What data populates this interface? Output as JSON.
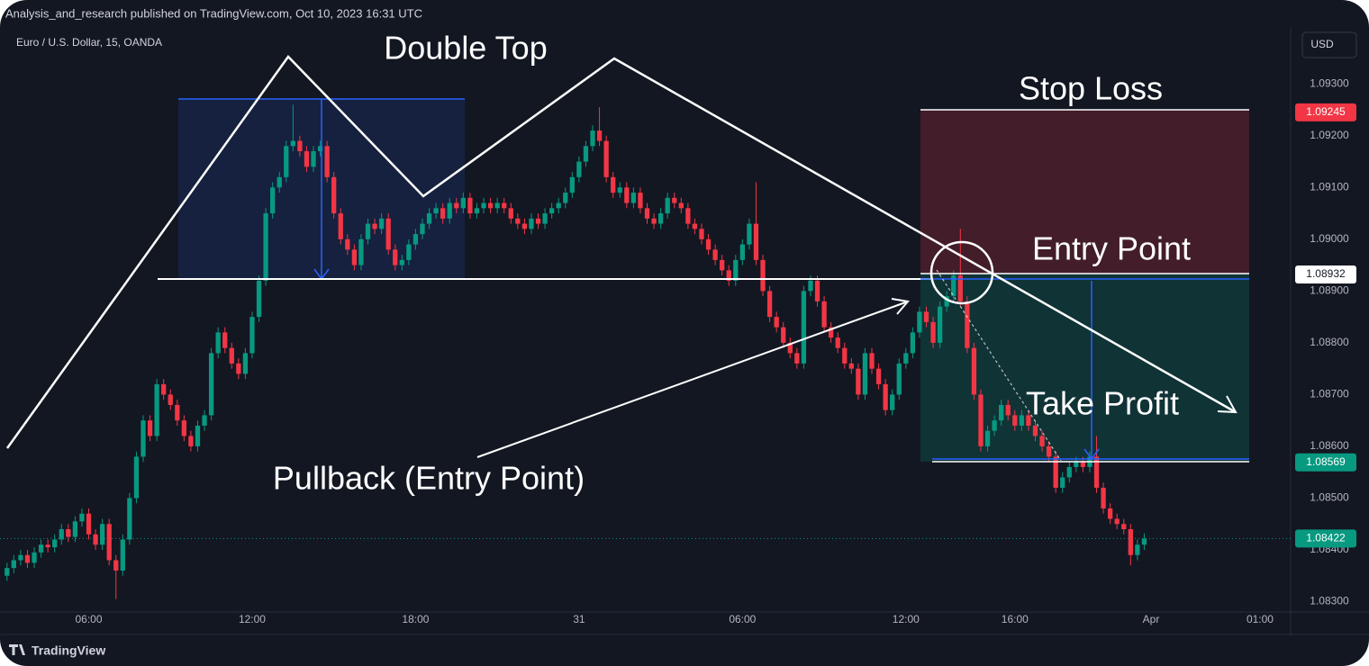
{
  "chart_data": {
    "type": "candlestick",
    "header": "Analysis_and_research published on TradingView.com, Oct 10, 2023 16:31 UTC",
    "title": "Euro / U.S. Dollar, 15, OANDA",
    "currency": "USD",
    "brand": "TradingView",
    "annotations": [
      "Double Top",
      "Stop Loss",
      "Entry Point",
      "Take Profit",
      "Pullback (Entry Point)"
    ],
    "up_color": "#089981",
    "down_color": "#f23645",
    "grid": false,
    "ylim": [
      1.0828,
      1.0941
    ],
    "yticks": [
      {
        "value": 1.083,
        "label": "1.08300"
      },
      {
        "value": 1.084,
        "label": "1.08400"
      },
      {
        "value": 1.085,
        "label": "1.08500"
      },
      {
        "value": 1.086,
        "label": "1.08600"
      },
      {
        "value": 1.087,
        "label": "1.08700"
      },
      {
        "value": 1.088,
        "label": "1.08800"
      },
      {
        "value": 1.089,
        "label": "1.08900"
      },
      {
        "value": 1.09,
        "label": "1.09000"
      },
      {
        "value": 1.091,
        "label": "1.09100"
      },
      {
        "value": 1.092,
        "label": "1.09200"
      },
      {
        "value": 1.093,
        "label": "1.09300"
      }
    ],
    "price_tags": [
      {
        "value": 1.09245,
        "color": "#f23645",
        "text_color": "#ffffff",
        "dotted_line": false
      },
      {
        "value": 1.08932,
        "color": "#ffffff",
        "text_color": "#131722",
        "dotted_line": false
      },
      {
        "value": 1.08569,
        "color": "#089981",
        "text_color": "#ffffff",
        "dotted_line": false
      },
      {
        "value": 1.08422,
        "color": "#089981",
        "text_color": "#ffffff",
        "dotted_line": true
      }
    ],
    "categories": [
      null,
      null,
      null,
      null,
      null,
      null,
      null,
      null,
      null,
      null,
      null,
      null,
      "06:00",
      null,
      null,
      null,
      null,
      null,
      null,
      null,
      null,
      null,
      null,
      null,
      null,
      null,
      null,
      null,
      null,
      null,
      null,
      null,
      null,
      null,
      null,
      null,
      "12:00",
      null,
      null,
      null,
      null,
      null,
      null,
      null,
      null,
      null,
      null,
      null,
      null,
      null,
      null,
      null,
      null,
      null,
      null,
      null,
      null,
      null,
      null,
      null,
      "18:00",
      null,
      null,
      null,
      null,
      null,
      null,
      null,
      null,
      null,
      null,
      null,
      null,
      null,
      null,
      null,
      null,
      null,
      null,
      null,
      null,
      null,
      null,
      null,
      "31",
      null,
      null,
      null,
      null,
      null,
      null,
      null,
      null,
      null,
      null,
      null,
      null,
      null,
      null,
      null,
      null,
      null,
      null,
      null,
      null,
      null,
      null,
      null,
      "06:00",
      null,
      null,
      null,
      null,
      null,
      null,
      null,
      null,
      null,
      null,
      null,
      null,
      null,
      null,
      null,
      null,
      null,
      null,
      null,
      null,
      null,
      null,
      null,
      "12:00",
      null,
      null,
      null,
      null,
      null,
      null,
      null,
      null,
      null,
      null,
      null,
      null,
      null,
      null,
      null,
      "16:00",
      null,
      null,
      null,
      null,
      null,
      null,
      null,
      null,
      null,
      null,
      null,
      null,
      null,
      null,
      null,
      null,
      null,
      null,
      null,
      "Apr",
      null,
      null,
      null,
      null,
      null,
      null,
      null,
      null,
      null,
      null,
      null,
      null,
      null,
      null,
      null,
      "01:00",
      null,
      null,
      null,
      null
    ],
    "open": [
      1.0835,
      1.08365,
      1.0838,
      1.0839,
      1.08375,
      1.08395,
      1.0841,
      1.08405,
      1.0842,
      1.0844,
      1.08425,
      1.08455,
      1.0847,
      1.0843,
      1.0841,
      1.0845,
      1.0838,
      1.0836,
      1.0842,
      1.085,
      1.0858,
      1.0865,
      1.0862,
      1.0872,
      1.087,
      1.0868,
      1.0865,
      1.0862,
      1.086,
      1.0864,
      1.0866,
      1.0878,
      1.0882,
      1.0879,
      1.0876,
      1.0874,
      1.0878,
      1.0885,
      1.0892,
      1.0905,
      1.091,
      1.0912,
      1.0918,
      1.0919,
      1.0917,
      1.0914,
      1.0917,
      1.0918,
      1.0912,
      1.0905,
      1.09,
      1.0898,
      1.0895,
      1.09,
      1.0903,
      1.0902,
      1.0904,
      1.0898,
      1.0895,
      1.0896,
      1.0899,
      1.0901,
      1.0903,
      1.0905,
      1.0906,
      1.0904,
      1.0907,
      1.0906,
      1.0908,
      1.0905,
      1.0906,
      1.0907,
      1.0906,
      1.0907,
      1.0906,
      1.0904,
      1.0903,
      1.0902,
      1.0904,
      1.0903,
      1.0905,
      1.0906,
      1.0907,
      1.0909,
      1.0912,
      1.0915,
      1.0918,
      1.0921,
      1.0919,
      1.0912,
      1.0909,
      1.091,
      1.0907,
      1.0909,
      1.0906,
      1.0904,
      1.0903,
      1.0905,
      1.0908,
      1.0907,
      1.0906,
      1.0903,
      1.0902,
      1.09,
      1.0898,
      1.0896,
      1.0894,
      1.0892,
      1.0896,
      1.0899,
      1.0903,
      1.0896,
      1.089,
      1.0885,
      1.0883,
      1.088,
      1.0878,
      1.0876,
      1.089,
      1.0892,
      1.0888,
      1.0883,
      1.0881,
      1.0879,
      1.0876,
      1.0875,
      1.087,
      1.0878,
      1.0875,
      1.0872,
      1.0867,
      1.087,
      1.0876,
      1.0878,
      1.0882,
      1.0886,
      1.0884,
      1.088,
      1.0887,
      1.0889,
      1.0893,
      1.0888,
      1.0879,
      1.087,
      1.086,
      1.0863,
      1.0865,
      1.0868,
      1.0866,
      1.0864,
      1.0866,
      1.0864,
      1.0862,
      1.086,
      1.0858,
      1.0852,
      1.0854,
      1.0856,
      1.0857,
      1.0856,
      1.0858,
      1.0852,
      1.0848,
      1.0846,
      1.0845,
      1.0844,
      1.0839,
      1.0841,
      null,
      null,
      null,
      null,
      null,
      null,
      null,
      null,
      null,
      null,
      null,
      null,
      null,
      null,
      null,
      null,
      null,
      null,
      null,
      null,
      null
    ],
    "high": [
      1.08375,
      1.0839,
      1.084,
      1.084,
      1.08405,
      1.0842,
      1.0842,
      1.0843,
      1.0845,
      1.0845,
      1.08465,
      1.0848,
      1.0848,
      1.0844,
      1.0846,
      1.0846,
      1.0839,
      1.0843,
      1.0851,
      1.0859,
      1.0866,
      1.0866,
      1.0873,
      1.0873,
      1.0871,
      1.0869,
      1.0866,
      1.0863,
      1.0865,
      1.0867,
      1.0879,
      1.0883,
      1.0883,
      1.088,
      1.0877,
      1.0879,
      1.0886,
      1.0893,
      1.0906,
      1.0911,
      1.0913,
      1.0919,
      1.0926,
      1.092,
      1.0918,
      1.0918,
      1.0919,
      1.0919,
      1.0913,
      1.0906,
      1.0901,
      1.0899,
      1.0901,
      1.0904,
      1.0904,
      1.0905,
      1.0905,
      1.0899,
      1.0897,
      1.09,
      1.0902,
      1.0904,
      1.0906,
      1.0907,
      1.0907,
      1.0908,
      1.0908,
      1.0909,
      1.0909,
      1.0907,
      1.0908,
      1.0908,
      1.0908,
      1.0908,
      1.0907,
      1.0905,
      1.0904,
      1.0905,
      1.0905,
      1.0906,
      1.0907,
      1.0908,
      1.091,
      1.0913,
      1.0916,
      1.0919,
      1.0922,
      1.09255,
      1.092,
      1.0913,
      1.0911,
      1.0911,
      1.091,
      1.091,
      1.0907,
      1.0905,
      1.0906,
      1.0909,
      1.0909,
      1.0908,
      1.0907,
      1.0904,
      1.0903,
      1.0901,
      1.0899,
      1.0897,
      1.0895,
      1.0897,
      1.09,
      1.0904,
      1.0911,
      1.0897,
      1.0891,
      1.0886,
      1.0884,
      1.0881,
      1.0879,
      1.0891,
      1.0893,
      1.0893,
      1.0889,
      1.0884,
      1.0882,
      1.088,
      1.0877,
      1.0876,
      1.0879,
      1.0879,
      1.0876,
      1.0873,
      1.0871,
      1.0877,
      1.0879,
      1.0883,
      1.0887,
      1.0887,
      1.0885,
      1.0888,
      1.089,
      1.0894,
      1.0902,
      1.0889,
      1.088,
      1.0871,
      1.0864,
      1.0866,
      1.0869,
      1.0869,
      1.0867,
      1.0867,
      1.0867,
      1.0865,
      1.0863,
      1.0861,
      1.0859,
      1.0855,
      1.0857,
      1.0858,
      1.0858,
      1.0859,
      1.0862,
      1.0853,
      1.0849,
      1.0847,
      1.0846,
      1.0845,
      1.0842,
      1.08432,
      null,
      null,
      null,
      null,
      null,
      null,
      null,
      null,
      null,
      null,
      null,
      null,
      null,
      null,
      null,
      null,
      null,
      null,
      null,
      null,
      null
    ],
    "low": [
      1.0834,
      1.08355,
      1.0837,
      1.08365,
      1.08365,
      1.08385,
      1.08395,
      1.08395,
      1.0841,
      1.08415,
      1.08415,
      1.08445,
      1.0842,
      1.084,
      1.084,
      1.0837,
      1.08305,
      1.0835,
      1.0841,
      1.0849,
      1.0857,
      1.0861,
      1.0861,
      1.0869,
      1.0867,
      1.0864,
      1.0861,
      1.0859,
      1.0859,
      1.0863,
      1.0865,
      1.0877,
      1.0878,
      1.0875,
      1.0873,
      1.0873,
      1.0877,
      1.0884,
      1.0891,
      1.0904,
      1.0909,
      1.0911,
      1.0917,
      1.0916,
      1.0913,
      1.0913,
      1.0916,
      1.0911,
      1.0904,
      1.0899,
      1.0897,
      1.0894,
      1.0894,
      1.0899,
      1.0901,
      1.0901,
      1.0897,
      1.0894,
      1.0894,
      1.0895,
      1.0898,
      1.09,
      1.0902,
      1.0904,
      1.0903,
      1.0903,
      1.0905,
      1.0905,
      1.0904,
      1.0904,
      1.0905,
      1.0905,
      1.0905,
      1.0905,
      1.0903,
      1.0902,
      1.0901,
      1.0901,
      1.0902,
      1.0902,
      1.0904,
      1.0905,
      1.0906,
      1.0908,
      1.0911,
      1.0914,
      1.0917,
      1.0918,
      1.0911,
      1.0908,
      1.0908,
      1.0906,
      1.0906,
      1.0905,
      1.0903,
      1.0902,
      1.0902,
      1.0904,
      1.0906,
      1.0905,
      1.0902,
      1.0901,
      1.0899,
      1.0897,
      1.0895,
      1.0893,
      1.0891,
      1.0891,
      1.0895,
      1.0898,
      1.0895,
      1.0889,
      1.0884,
      1.0882,
      1.0879,
      1.0877,
      1.0875,
      1.0875,
      1.0889,
      1.0887,
      1.0882,
      1.088,
      1.0878,
      1.0875,
      1.0874,
      1.0869,
      1.0869,
      1.0874,
      1.0871,
      1.0866,
      1.0866,
      1.0869,
      1.0875,
      1.0877,
      1.0881,
      1.0883,
      1.0879,
      1.0879,
      1.0886,
      1.0888,
      1.0887,
      1.0878,
      1.0869,
      1.0859,
      1.0859,
      1.0862,
      1.0864,
      1.0865,
      1.0863,
      1.0863,
      1.0863,
      1.0861,
      1.0859,
      1.0857,
      1.0851,
      1.0851,
      1.0853,
      1.0855,
      1.0855,
      1.0855,
      1.0851,
      1.0847,
      1.0845,
      1.0844,
      1.0843,
      1.0837,
      1.0838,
      1.084,
      null,
      null,
      null,
      null,
      null,
      null,
      null,
      null,
      null,
      null,
      null,
      null,
      null,
      null,
      null,
      null,
      null,
      null,
      null,
      null,
      null
    ],
    "close": [
      1.08365,
      1.0838,
      1.0839,
      1.08375,
      1.08395,
      1.0841,
      1.08405,
      1.0842,
      1.0844,
      1.08425,
      1.08455,
      1.0847,
      1.0843,
      1.0841,
      1.0845,
      1.0838,
      1.0836,
      1.0842,
      1.085,
      1.0858,
      1.0865,
      1.0862,
      1.0872,
      1.087,
      1.0868,
      1.0865,
      1.0862,
      1.086,
      1.0864,
      1.0866,
      1.0878,
      1.0882,
      1.0879,
      1.0876,
      1.0874,
      1.0878,
      1.0885,
      1.0892,
      1.0905,
      1.091,
      1.0912,
      1.0918,
      1.0919,
      1.0917,
      1.0914,
      1.0917,
      1.0918,
      1.0912,
      1.0905,
      1.09,
      1.0898,
      1.0895,
      1.09,
      1.0903,
      1.0902,
      1.0904,
      1.0898,
      1.0895,
      1.0896,
      1.0899,
      1.0901,
      1.0903,
      1.0905,
      1.0906,
      1.0904,
      1.0907,
      1.0906,
      1.0908,
      1.0905,
      1.0906,
      1.0907,
      1.0906,
      1.0907,
      1.0906,
      1.0904,
      1.0903,
      1.0902,
      1.0904,
      1.0903,
      1.0905,
      1.0906,
      1.0907,
      1.0909,
      1.0912,
      1.0915,
      1.0918,
      1.0921,
      1.0919,
      1.0912,
      1.0909,
      1.091,
      1.0907,
      1.0909,
      1.0906,
      1.0904,
      1.0903,
      1.0905,
      1.0908,
      1.0907,
      1.0906,
      1.0903,
      1.0902,
      1.09,
      1.0898,
      1.0896,
      1.0894,
      1.0892,
      1.0896,
      1.0899,
      1.0903,
      1.0896,
      1.089,
      1.0885,
      1.0883,
      1.088,
      1.0878,
      1.0876,
      1.089,
      1.0892,
      1.0888,
      1.0883,
      1.0881,
      1.0879,
      1.0876,
      1.0875,
      1.087,
      1.0878,
      1.0875,
      1.0872,
      1.0867,
      1.087,
      1.0876,
      1.0878,
      1.0882,
      1.0886,
      1.0884,
      1.088,
      1.0887,
      1.0889,
      1.0893,
      1.0888,
      1.0879,
      1.087,
      1.086,
      1.0863,
      1.0865,
      1.0868,
      1.0866,
      1.0864,
      1.0866,
      1.0864,
      1.0862,
      1.086,
      1.0858,
      1.0852,
      1.0854,
      1.0856,
      1.0857,
      1.0856,
      1.0858,
      1.0852,
      1.0848,
      1.0846,
      1.0845,
      1.0844,
      1.0839,
      1.0841,
      1.08422,
      null,
      null,
      null,
      null,
      null,
      null,
      null,
      null,
      null,
      null,
      null,
      null,
      null,
      null,
      null,
      null,
      null,
      null,
      null,
      null,
      null
    ]
  }
}
